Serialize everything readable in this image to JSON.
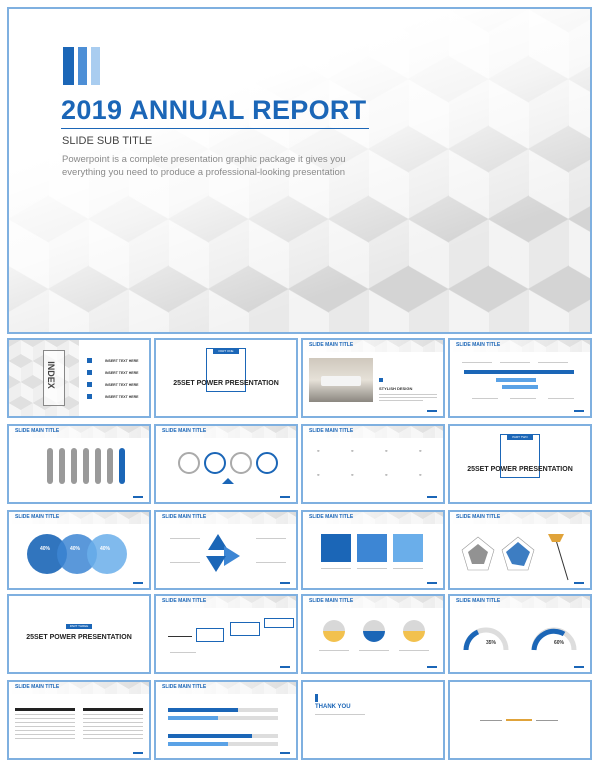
{
  "hero": {
    "title": "2019 ANNUAL REPORT",
    "subtitle": "SLIDE SUB TITLE",
    "description": "Powerpoint is a complete presentation graphic package it gives you everything you need to produce a professional-looking presentation",
    "accent_colors": [
      "#1b66b7",
      "#4d8fd6",
      "#a9cdf0"
    ]
  },
  "slide_main_title": "SLIDE MAIN TITLE",
  "index_slide": {
    "label": "INDEX",
    "items": [
      {
        "num": "1",
        "text": "INSERT TEXT HERE"
      },
      {
        "num": "2",
        "text": "INSERT TEXT HERE"
      },
      {
        "num": "3",
        "text": "INSERT TEXT HERE"
      },
      {
        "num": "4",
        "text": "INSERT TEXT HERE"
      }
    ]
  },
  "part_slides": [
    {
      "tag": "PART ONE",
      "title": "25SET POWER PRESENTATION"
    },
    {
      "tag": "PART TWO",
      "title": "25SET POWER PRESENTATION"
    },
    {
      "tag": "PART THREE",
      "title": "25SET POWER PRESENTATION"
    }
  ],
  "stylish_slide": {
    "heading": "STYLISH DESIGN"
  },
  "circles_slide": {
    "values": [
      "40%",
      "40%",
      "40%"
    ]
  },
  "gauge_slide": {
    "values": [
      "35%",
      "60%"
    ]
  },
  "thank_slide": {
    "text": "THANK YOU"
  }
}
